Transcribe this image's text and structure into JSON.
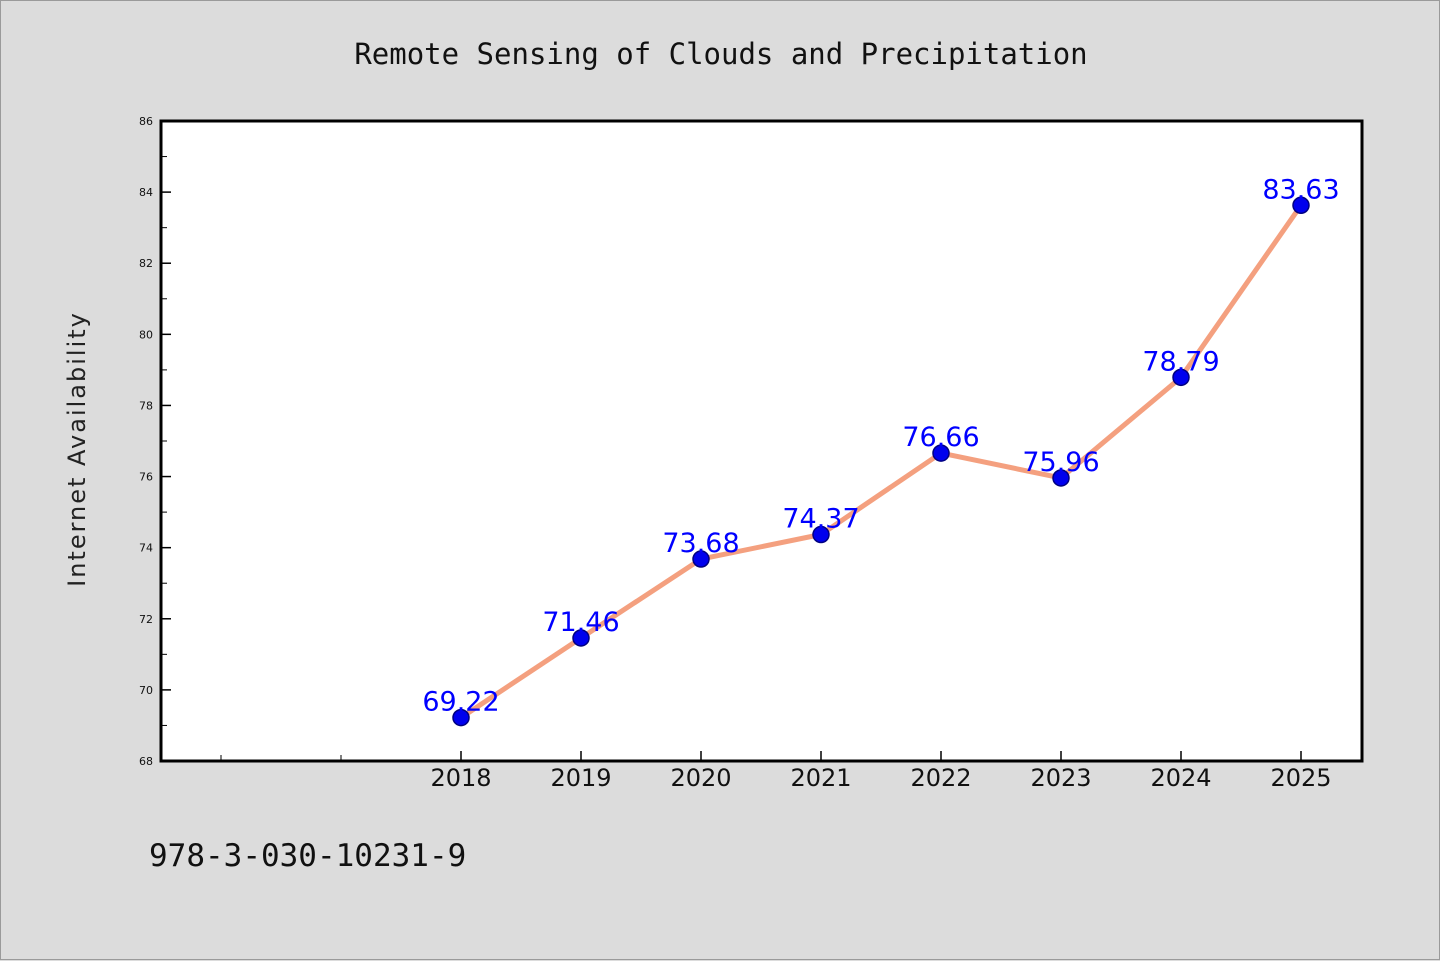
{
  "chart_data": {
    "type": "line",
    "title": "Remote Sensing of Clouds and Precipitation",
    "xlabel": "",
    "ylabel": "Internet Availability",
    "categories": [
      "2018",
      "2019",
      "2020",
      "2021",
      "2022",
      "2023",
      "2024",
      "2025"
    ],
    "series": [
      {
        "values": [
          69.22,
          71.46,
          73.68,
          74.37,
          76.66,
          75.96,
          78.79,
          83.63
        ],
        "data_labels": [
          "69.22",
          "71.46",
          "73.68",
          "74.37",
          "76.66",
          "75.96",
          "78.79",
          "83.63"
        ]
      }
    ],
    "ylim": [
      68,
      86
    ],
    "yticks": [
      "68",
      "70",
      "72",
      "74",
      "76",
      "78",
      "80",
      "82",
      "84",
      "86"
    ],
    "grid": false,
    "legend": "none",
    "caption": "978-3-030-10231-9",
    "colors": {
      "line": "#f4a07f",
      "marker": "#0000ee",
      "marker_edge": "#000080",
      "data_label": "#0000ff",
      "plot_background": "#ffffff",
      "figure_background": "#dcdcdc"
    }
  }
}
